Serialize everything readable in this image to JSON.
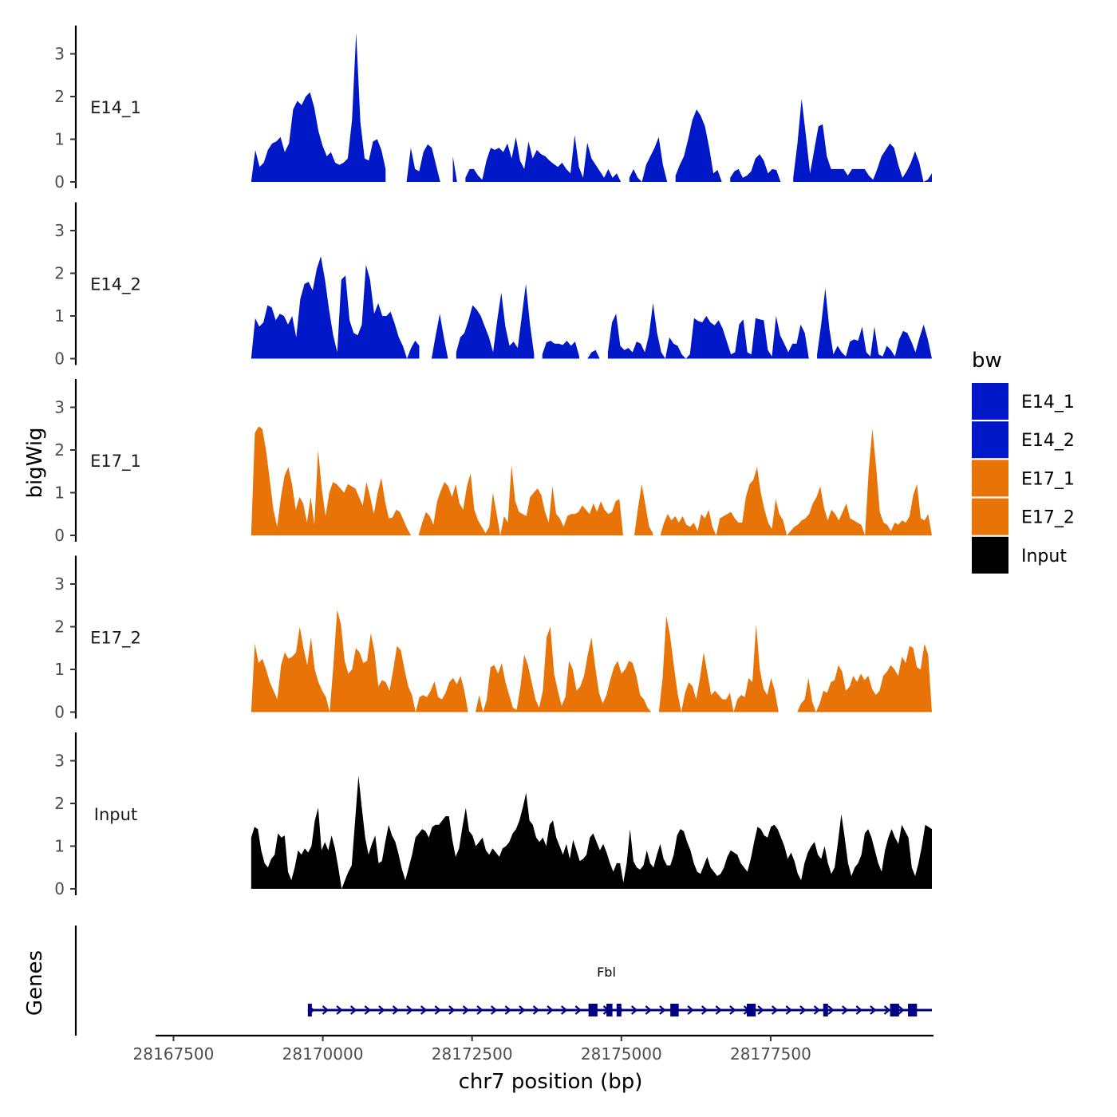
{
  "chart_data": {
    "type": "area",
    "chromosome": "chr7",
    "xlabel": "chr7 position (bp)",
    "ylabel": "bigWig",
    "gene_panel_label": "Genes",
    "xlim": [
      28167200,
      28180200
    ],
    "ylim": [
      0,
      3.6
    ],
    "x_ticks": [
      28167500,
      28170000,
      28172500,
      28175000,
      28177500
    ],
    "x_tick_labels": [
      "28167500",
      "28170000",
      "28172500",
      "28175000",
      "28177500"
    ],
    "y_ticks": [
      0,
      1,
      2,
      3
    ],
    "y_tick_labels": [
      "0",
      "1",
      "2",
      "3"
    ],
    "legend": {
      "title": "bw",
      "entries": [
        {
          "label": "E14_1",
          "color": "#0018C8"
        },
        {
          "label": "E14_2",
          "color": "#0018C8"
        },
        {
          "label": "E17_1",
          "color": "#E87306"
        },
        {
          "label": "E17_2",
          "color": "#E87306"
        },
        {
          "label": "Input",
          "color": "#000000"
        }
      ]
    },
    "x_start": 28168800,
    "x_end": 28180200,
    "series": [
      {
        "name": "E14_1",
        "label": "E14_1",
        "color": "#0018C8",
        "values": [
          0.0,
          0.75,
          0.35,
          0.45,
          0.75,
          0.9,
          0.95,
          1.05,
          0.7,
          0.9,
          1.7,
          1.9,
          1.8,
          2.0,
          2.1,
          1.75,
          1.2,
          0.85,
          0.6,
          0.7,
          0.45,
          0.4,
          0.45,
          0.55,
          1.45,
          3.5,
          1.4,
          0.55,
          0.5,
          0.95,
          1.0,
          0.75,
          0.3,
          null,
          null,
          null,
          null,
          0.0,
          0.8,
          0.3,
          0.25,
          0.7,
          0.88,
          0.8,
          0.4,
          0.0,
          null,
          null,
          0.6,
          0.0,
          null,
          0.1,
          0.3,
          0.3,
          0.15,
          0.05,
          0.5,
          0.8,
          0.75,
          0.8,
          0.7,
          0.9,
          0.55,
          1.05,
          0.5,
          0.3,
          0.95,
          0.55,
          0.75,
          0.65,
          0.6,
          0.5,
          0.42,
          0.35,
          0.45,
          0.3,
          0.2,
          1.1,
          0.35,
          0.1,
          0.92,
          0.55,
          0.4,
          0.25,
          0.1,
          0.3,
          0.1,
          0.2,
          0.0,
          null,
          0.1,
          0.3,
          0.1,
          0.0,
          0.4,
          0.6,
          0.8,
          1.05,
          0.4,
          0.0,
          null,
          0.15,
          0.4,
          0.6,
          1.0,
          1.45,
          1.7,
          1.55,
          1.3,
          0.8,
          0.2,
          0.28,
          0.0,
          null,
          0.1,
          0.25,
          0.3,
          0.1,
          0.15,
          0.25,
          0.55,
          0.65,
          0.5,
          0.2,
          0.3,
          0.28,
          0.0,
          null,
          null,
          0.1,
          0.9,
          1.95,
          1.1,
          0.2,
          0.75,
          1.3,
          1.35,
          0.6,
          0.3,
          0.3,
          0.3,
          0.3,
          0.15,
          0.3,
          0.3,
          0.3,
          0.3,
          0.15,
          0.05,
          0.3,
          0.6,
          0.75,
          0.9,
          0.8,
          0.4,
          0.1,
          0.25,
          0.45,
          0.72,
          0.45,
          0.0,
          0.05,
          0.2
        ]
      },
      {
        "name": "E14_2",
        "label": "E14_2",
        "color": "#0018C8",
        "values": [
          0.0,
          0.95,
          0.75,
          0.85,
          1.25,
          1.2,
          0.9,
          1.05,
          1.0,
          0.8,
          1.0,
          0.5,
          1.4,
          1.75,
          1.8,
          1.6,
          2.1,
          2.4,
          1.85,
          1.15,
          0.55,
          0.15,
          1.85,
          1.95,
          0.9,
          0.6,
          0.55,
          0.8,
          2.2,
          1.85,
          1.05,
          1.3,
          1.0,
          1.0,
          1.1,
          0.82,
          0.5,
          0.3,
          0.0,
          0.25,
          0.42,
          0.3,
          null,
          null,
          0.0,
          0.55,
          1.05,
          0.5,
          0.0,
          null,
          0.15,
          0.5,
          0.6,
          0.9,
          1.25,
          1.15,
          1.0,
          0.75,
          0.5,
          0.15,
          0.9,
          1.55,
          0.75,
          0.3,
          0.4,
          0.25,
          1.0,
          1.75,
          0.8,
          0.1,
          null,
          0.1,
          0.38,
          0.42,
          0.35,
          0.35,
          0.32,
          0.42,
          0.3,
          0.4,
          0.05,
          null,
          0.0,
          0.15,
          0.2,
          0.0,
          null,
          0.15,
          0.85,
          1.05,
          0.3,
          0.2,
          0.25,
          0.15,
          0.4,
          0.35,
          0.15,
          0.55,
          1.3,
          0.6,
          0.15,
          0.0,
          0.5,
          0.35,
          0.3,
          0.1,
          0.0,
          0.1,
          0.95,
          0.88,
          0.85,
          1.0,
          0.85,
          0.78,
          0.9,
          0.7,
          0.4,
          0.1,
          0.15,
          0.8,
          0.92,
          0.15,
          0.1,
          0.95,
          0.92,
          0.9,
          0.2,
          0.05,
          1.0,
          0.55,
          0.35,
          0.15,
          0.35,
          0.35,
          0.8,
          0.6,
          0.0,
          null,
          0.1,
          0.8,
          1.65,
          0.7,
          0.1,
          0.3,
          0.15,
          0.05,
          0.4,
          0.45,
          0.42,
          0.75,
          0.15,
          0.05,
          0.75,
          0.1,
          0.05,
          0.3,
          0.2,
          0.05,
          0.45,
          0.65,
          0.6,
          0.4,
          0.15,
          0.5,
          0.8,
          0.45,
          0.0
        ]
      },
      {
        "name": "E17_1",
        "label": "E17_1",
        "color": "#E87306",
        "values": [
          0.0,
          2.4,
          2.55,
          2.5,
          2.0,
          1.3,
          0.6,
          0.2,
          0.9,
          1.4,
          1.6,
          1.2,
          0.6,
          0.9,
          0.75,
          0.3,
          0.9,
          0.25,
          2.0,
          1.1,
          0.45,
          1.0,
          1.25,
          1.2,
          1.1,
          1.0,
          1.2,
          1.15,
          1.1,
          0.9,
          0.7,
          1.25,
          0.9,
          0.5,
          1.0,
          1.35,
          0.8,
          0.4,
          0.42,
          0.6,
          0.55,
          0.35,
          0.15,
          0.0,
          null,
          0.0,
          0.3,
          0.55,
          0.45,
          0.25,
          0.8,
          1.05,
          1.25,
          1.15,
          0.9,
          1.2,
          0.75,
          0.6,
          1.15,
          1.45,
          0.6,
          0.35,
          0.2,
          0.05,
          0.2,
          1.0,
          0.5,
          0.0,
          0.45,
          0.3,
          1.65,
          0.8,
          0.55,
          0.5,
          0.45,
          0.9,
          1.0,
          1.1,
          0.95,
          0.55,
          0.3,
          1.15,
          0.5,
          0.4,
          0.2,
          0.45,
          0.5,
          0.5,
          0.55,
          0.7,
          0.6,
          0.5,
          0.75,
          0.55,
          0.8,
          0.6,
          0.5,
          0.55,
          0.8,
          0.85,
          0.0,
          null,
          null,
          0.0,
          0.65,
          1.2,
          0.7,
          0.2,
          0.05,
          null,
          0.0,
          0.3,
          0.5,
          0.35,
          0.45,
          0.3,
          0.45,
          0.25,
          0.2,
          0.3,
          0.1,
          0.5,
          0.4,
          0.6,
          0.2,
          0.0,
          0.4,
          0.45,
          0.5,
          0.55,
          0.4,
          0.3,
          0.3,
          0.9,
          1.2,
          1.3,
          1.6,
          1.0,
          0.6,
          0.3,
          0.15,
          0.85,
          0.5,
          0.35,
          0.0,
          0.1,
          0.2,
          0.25,
          0.35,
          0.4,
          0.5,
          0.75,
          0.9,
          1.15,
          0.65,
          0.35,
          0.6,
          0.5,
          0.35,
          0.55,
          0.75,
          0.4,
          0.35,
          0.3,
          0.25,
          0.0,
          1.5,
          2.5,
          1.6,
          0.55,
          0.3,
          0.25,
          0.1,
          0.3,
          0.25,
          0.35,
          0.3,
          0.45,
          0.95,
          1.2,
          0.4,
          0.35,
          0.5,
          0.0
        ]
      },
      {
        "name": "E17_2",
        "label": "E17_2",
        "color": "#E87306",
        "values": [
          0.0,
          1.6,
          1.15,
          1.25,
          1.0,
          0.7,
          0.5,
          0.3,
          1.1,
          1.4,
          1.25,
          1.3,
          1.4,
          2.0,
          1.5,
          1.1,
          1.75,
          1.0,
          0.7,
          0.5,
          0.35,
          0.0,
          1.1,
          2.4,
          2.05,
          1.2,
          0.9,
          1.0,
          1.5,
          1.4,
          1.15,
          1.2,
          1.85,
          1.4,
          0.6,
          0.75,
          0.7,
          0.5,
          1.0,
          1.55,
          1.45,
          1.0,
          0.6,
          0.4,
          0.0,
          0.35,
          0.4,
          0.35,
          0.5,
          0.72,
          0.35,
          0.3,
          0.45,
          0.7,
          0.8,
          0.65,
          0.85,
          0.5,
          0.0,
          null,
          0.0,
          0.4,
          0.0,
          0.3,
          1.05,
          1.1,
          0.9,
          1.15,
          0.7,
          0.4,
          0.1,
          0.05,
          0.6,
          1.35,
          1.1,
          0.7,
          0.3,
          0.1,
          0.5,
          1.75,
          2.0,
          0.9,
          0.5,
          0.15,
          0.35,
          1.2,
          1.0,
          0.5,
          0.6,
          0.85,
          1.35,
          1.75,
          1.05,
          0.45,
          0.2,
          0.4,
          0.75,
          1.05,
          1.2,
          0.9,
          1.0,
          1.2,
          1.15,
          0.85,
          0.4,
          0.3,
          0.1,
          0.0,
          null,
          0.0,
          0.8,
          2.25,
          1.8,
          1.1,
          0.45,
          0.0,
          0.45,
          0.7,
          0.6,
          0.3,
          0.8,
          1.4,
          0.9,
          0.4,
          0.5,
          0.4,
          0.3,
          0.3,
          0.45,
          0.0,
          0.3,
          0.4,
          0.35,
          0.8,
          0.7,
          2.05,
          1.0,
          0.55,
          0.4,
          0.8,
          0.5,
          0.0,
          null,
          null,
          null,
          null,
          0.0,
          0.2,
          0.3,
          0.8,
          0.25,
          0.0,
          0.2,
          0.5,
          0.45,
          0.7,
          0.75,
          1.1,
          0.95,
          0.5,
          0.6,
          0.85,
          0.7,
          0.9,
          0.75,
          0.85,
          0.55,
          0.4,
          0.5,
          0.85,
          0.95,
          1.1,
          1.0,
          0.85,
          1.3,
          1.15,
          1.55,
          1.5,
          1.05,
          1.0,
          1.6,
          1.35,
          0.0
        ]
      },
      {
        "name": "Input",
        "label": "Input",
        "color": "#000000",
        "values": [
          1.2,
          1.45,
          1.4,
          0.9,
          0.6,
          0.5,
          0.7,
          0.8,
          1.3,
          1.2,
          1.25,
          0.4,
          0.2,
          0.5,
          0.9,
          0.8,
          0.95,
          0.85,
          1.0,
          1.6,
          1.9,
          0.9,
          1.1,
          0.9,
          1.25,
          0.95,
          0.5,
          0.0,
          0.2,
          0.4,
          0.55,
          1.6,
          2.65,
          1.9,
          1.2,
          0.8,
          1.05,
          1.25,
          0.6,
          0.65,
          1.1,
          1.5,
          1.25,
          1.1,
          0.8,
          0.45,
          0.2,
          0.5,
          0.8,
          1.2,
          1.3,
          1.4,
          1.35,
          1.2,
          1.45,
          1.5,
          1.5,
          1.6,
          1.7,
          1.7,
          1.15,
          0.75,
          0.95,
          1.45,
          1.9,
          1.35,
          1.25,
          1.0,
          1.1,
          1.2,
          0.9,
          0.8,
          0.95,
          0.85,
          0.75,
          0.95,
          1.0,
          1.1,
          1.3,
          1.4,
          1.6,
          1.9,
          2.25,
          1.6,
          1.5,
          1.2,
          1.1,
          1.2,
          1.0,
          1.5,
          1.6,
          1.2,
          1.0,
          0.8,
          1.05,
          0.7,
          1.15,
          0.9,
          0.65,
          0.7,
          0.8,
          1.2,
          1.3,
          1.1,
          0.9,
          1.05,
          0.85,
          0.6,
          0.4,
          0.6,
          0.6,
          0.15,
          0.6,
          1.4,
          0.65,
          0.5,
          0.45,
          0.55,
          0.9,
          0.6,
          0.5,
          0.8,
          1.05,
          0.7,
          0.55,
          0.55,
          0.8,
          1.25,
          1.4,
          1.35,
          1.1,
          0.9,
          0.6,
          0.4,
          0.35,
          0.55,
          0.75,
          0.5,
          0.4,
          0.3,
          0.35,
          0.5,
          0.75,
          0.9,
          0.85,
          0.8,
          0.6,
          0.5,
          0.4,
          0.7,
          1.1,
          1.45,
          1.4,
          1.25,
          1.2,
          1.45,
          1.5,
          1.4,
          1.2,
          1.0,
          0.7,
          0.85,
          0.65,
          0.35,
          0.2,
          0.6,
          0.85,
          1.0,
          1.1,
          0.8,
          0.7,
          1.0,
          0.6,
          0.35,
          0.5,
          1.1,
          1.75,
          1.2,
          0.6,
          0.3,
          0.5,
          0.6,
          0.8,
          1.3,
          1.4,
          1.2,
          0.9,
          0.6,
          0.4,
          0.9,
          1.2,
          1.4,
          1.2,
          1.05,
          1.5,
          1.35,
          1.2,
          0.5,
          0.3,
          0.6,
          1.0,
          1.5,
          1.45,
          1.4
        ]
      }
    ],
    "gene": {
      "name": "Fbl",
      "strand": "+",
      "start": 28169750,
      "end": 28180200,
      "color": "#000080",
      "exons": [
        [
          28169750,
          28169800
        ],
        [
          28174450,
          28174600
        ],
        [
          28174750,
          28174850
        ],
        [
          28174920,
          28175000
        ],
        [
          28175820,
          28175960
        ],
        [
          28177100,
          28177250
        ],
        [
          28178380,
          28178460
        ],
        [
          28179500,
          28179650
        ],
        [
          28179800,
          28179950
        ]
      ]
    }
  }
}
